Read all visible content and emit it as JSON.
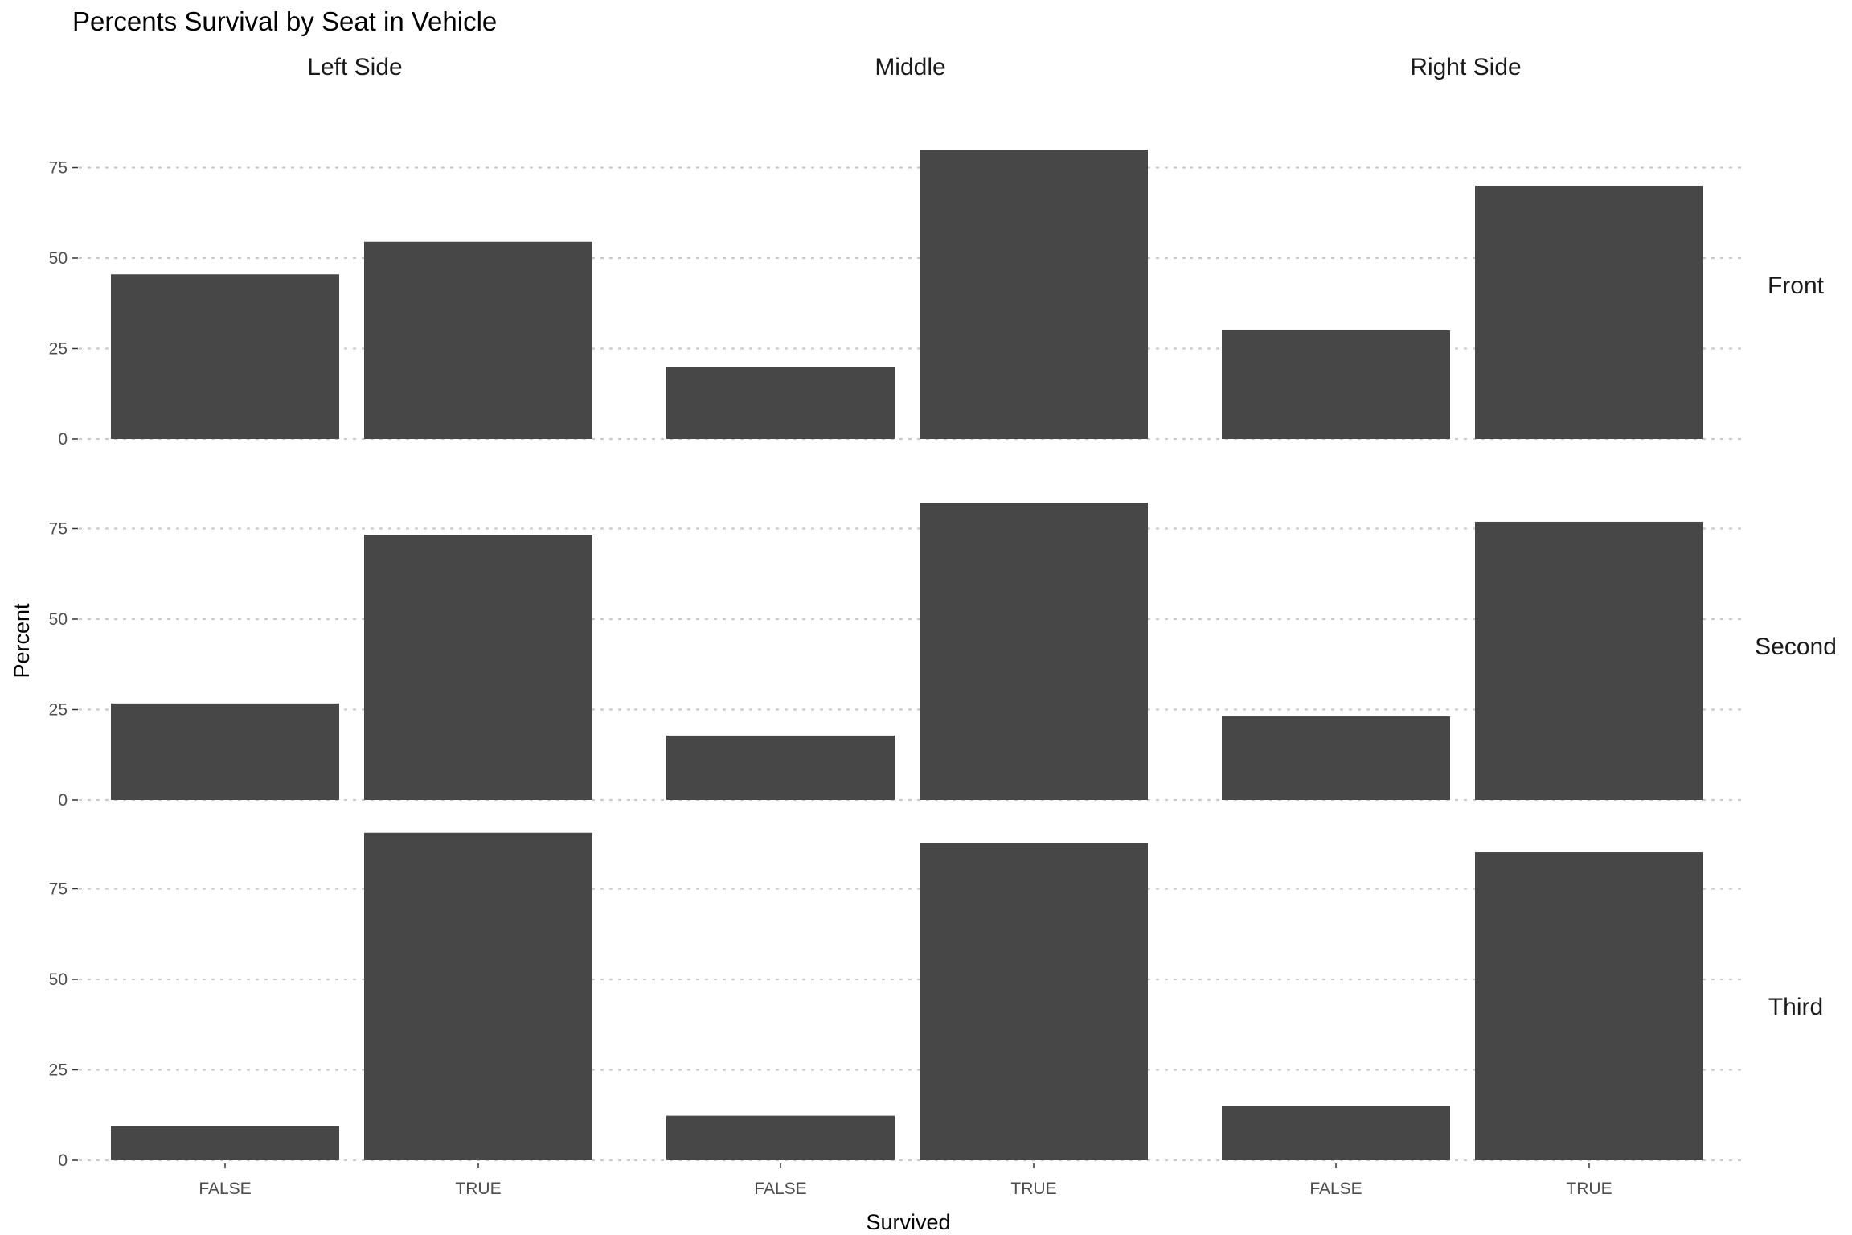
{
  "chart_data": {
    "type": "bar",
    "title": "Percents Survival by Seat in Vehicle",
    "xlabel": "Survived",
    "ylabel": "Percent",
    "categories": [
      "FALSE",
      "TRUE"
    ],
    "column_facets": [
      "Left Side",
      "Middle",
      "Right Side"
    ],
    "row_facets": [
      "Front",
      "Second",
      "Third"
    ],
    "ylim": [
      0,
      85
    ],
    "yticks": [
      0,
      25,
      50,
      75
    ],
    "grid": "dotted horizontal",
    "legend": "none",
    "bar_color": "#474747",
    "panels": [
      {
        "row": "Front",
        "column": "Left Side",
        "values": [
          45.5,
          54.5
        ]
      },
      {
        "row": "Front",
        "column": "Middle",
        "values": [
          20.0,
          80.0
        ]
      },
      {
        "row": "Front",
        "column": "Right Side",
        "values": [
          30.0,
          70.0
        ]
      },
      {
        "row": "Second",
        "column": "Left Side",
        "values": [
          26.7,
          73.3
        ]
      },
      {
        "row": "Second",
        "column": "Middle",
        "values": [
          17.8,
          82.2
        ]
      },
      {
        "row": "Second",
        "column": "Right Side",
        "values": [
          23.1,
          76.9
        ]
      },
      {
        "row": "Third",
        "column": "Left Side",
        "values": [
          9.5,
          90.5
        ]
      },
      {
        "row": "Third",
        "column": "Middle",
        "values": [
          12.3,
          87.7
        ]
      },
      {
        "row": "Third",
        "column": "Right Side",
        "values": [
          14.9,
          85.1
        ]
      }
    ]
  }
}
